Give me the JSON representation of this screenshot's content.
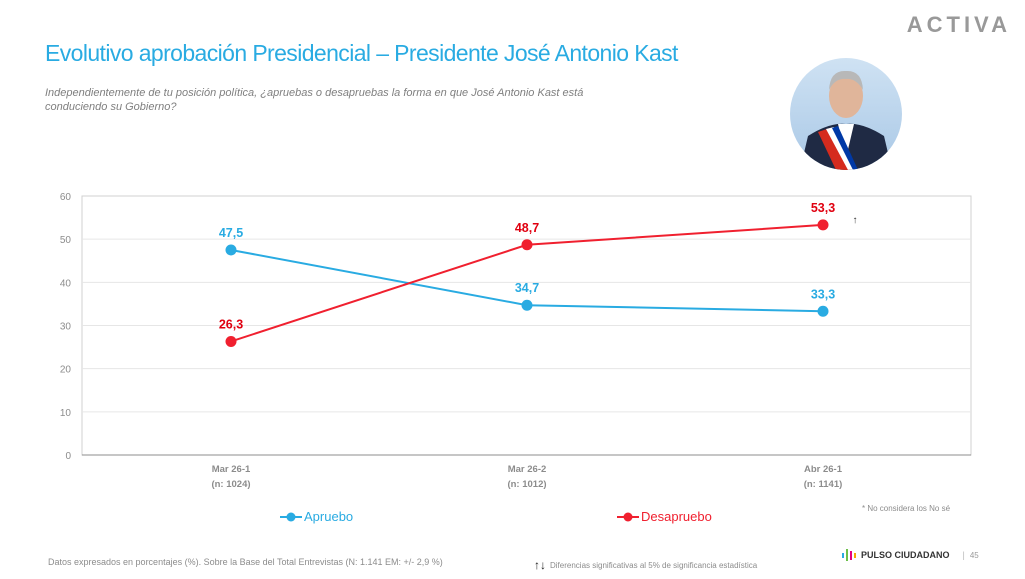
{
  "header": {
    "logo": "ACTIVA",
    "title": "Evolutivo aprobación Presidencial – Presidente José Antonio Kast",
    "question": "Independientemente de tu posición política, ¿apruebas o desapruebas la forma en que José Antonio Kast está conduciendo su Gobierno?"
  },
  "chart_data": {
    "type": "line",
    "categories": [
      [
        "Mar 26-1",
        "(n: 1024)"
      ],
      [
        "Mar 26-2",
        "(n: 1012)"
      ],
      [
        "Abr 26-1",
        "(n: 1141)"
      ]
    ],
    "ylim": [
      0,
      60
    ],
    "yticks": [
      0,
      10,
      20,
      30,
      40,
      50,
      60
    ],
    "grid": true,
    "legend_position": "bottom",
    "series": [
      {
        "name": "Apruebo",
        "color": "#29abe2",
        "values": [
          47.5,
          34.7,
          33.3
        ],
        "labels": [
          "47,5",
          "34,7",
          "33,3"
        ]
      },
      {
        "name": "Desapruebo",
        "color": "#f0202f",
        "values": [
          26.3,
          48.7,
          53.3
        ],
        "labels": [
          "26,3",
          "48,7",
          "53,3"
        ]
      }
    ],
    "annotations": [
      {
        "text": "↑",
        "series": "Desapruebo",
        "category": "Abr 26-1",
        "meaning": "significant increase"
      }
    ]
  },
  "notes": {
    "no_se": "* No considera los No sé",
    "base": "Datos expresados en porcentajes (%). Sobre la Base del Total Entrevistas (N: 1.141  EM: +/- 2,9 %)",
    "significance": "Diferencias  significativas  al 5% de significancia estadística",
    "brand": "PULSO CIUDADANO",
    "page": "45"
  }
}
